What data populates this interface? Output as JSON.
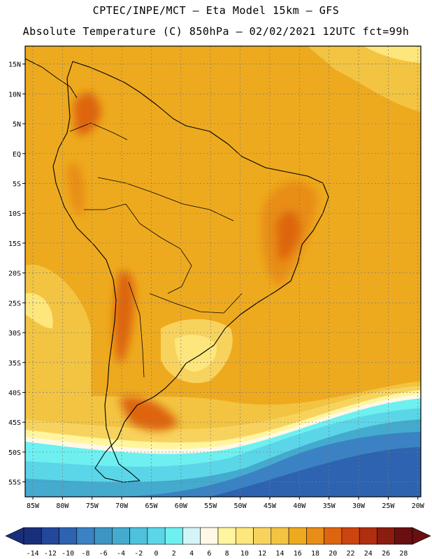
{
  "header": {
    "line1": "CPTEC/INPE/MCT –  Eta Model 15km – GFS",
    "line2": "Absolute Temperature (C) 850hPa – 02/02/2021 12UTC fct=99h"
  },
  "map": {
    "region": "South America",
    "lat_labels": [
      "15N",
      "10N",
      "5N",
      "EQ",
      "5S",
      "10S",
      "15S",
      "20S",
      "25S",
      "30S",
      "35S",
      "40S",
      "45S",
      "50S",
      "55S"
    ],
    "lon_labels": [
      "85W",
      "80W",
      "75W",
      "70W",
      "65W",
      "60W",
      "55W",
      "50W",
      "45W",
      "40W",
      "35W",
      "30W",
      "25W",
      "20W"
    ],
    "lat_range": [
      15,
      -55
    ],
    "lon_range": [
      -85,
      -20
    ],
    "gridlines": true
  },
  "colorbar": {
    "labels": [
      "-14",
      "-12",
      "-10",
      "-8",
      "-6",
      "-4",
      "-2",
      "0",
      "2",
      "4",
      "6",
      "8",
      "10",
      "12",
      "14",
      "16",
      "18",
      "20",
      "22",
      "24",
      "26",
      "28"
    ],
    "colors": [
      "#1a2f7a",
      "#23479a",
      "#2d63b0",
      "#3a82c4",
      "#3c96c4",
      "#44abcf",
      "#4ec1dc",
      "#5bd6e8",
      "#6ef0f0",
      "#d3f5f8",
      "#fff8e6",
      "#fff59e",
      "#fde67c",
      "#f7d35e",
      "#f2c441",
      "#eeaa1e",
      "#e88d16",
      "#de6510",
      "#cc4410",
      "#b02e10",
      "#8a1c10",
      "#6a0f10"
    ],
    "underflow_color": "#1a2f7a",
    "overflow_color": "#6a0f10"
  }
}
